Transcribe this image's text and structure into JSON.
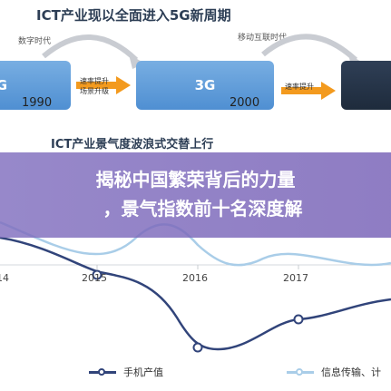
{
  "top_section": {
    "title": "ICT产业现以全面进入5G新周期",
    "era_labels": [
      "数字时代",
      "移动互联时代"
    ],
    "generations": [
      "G",
      "3G"
    ],
    "years": [
      "1990",
      "2000"
    ],
    "arrow_labels": [
      {
        "line1": "速率提升",
        "line2": "场景升级"
      },
      {
        "line1": "速率提升",
        "line2": ""
      }
    ]
  },
  "chart_title": "ICT产业景气度波浪式交替上行",
  "banner": {
    "line1": "揭秘中国繁荣背后的力量",
    "line2": "，景气指数前十名深度解"
  },
  "chart_data": {
    "type": "line",
    "x_ticks": [
      "14",
      "2015",
      "2016",
      "2017"
    ],
    "series": [
      {
        "name": "手机产值",
        "color": "#31447a"
      },
      {
        "name": "信息传输、计",
        "color": "#a9cde8"
      }
    ]
  },
  "colors": {
    "box_blue": "#5b9bd8",
    "box_dark": "#24324a",
    "arrow_orange": "#f39a1e",
    "banner_purple": "#7b66ba"
  }
}
